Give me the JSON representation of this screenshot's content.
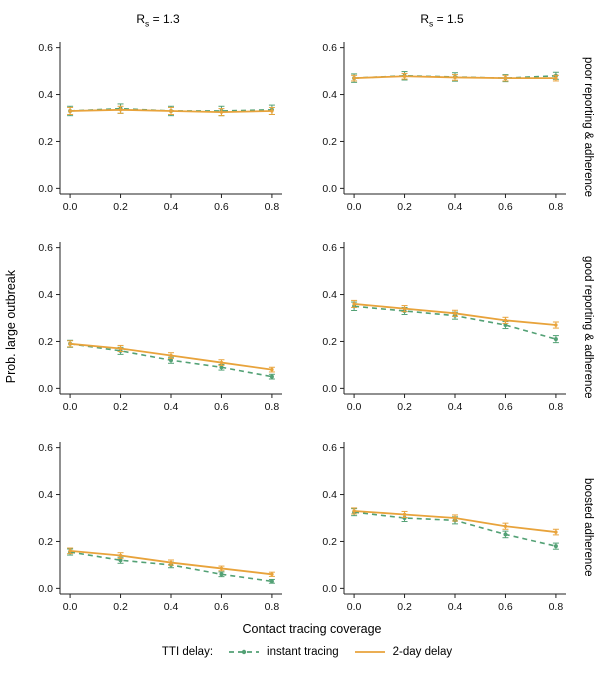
{
  "chart_data": {
    "type": "line",
    "x": [
      0.0,
      0.2,
      0.4,
      0.6,
      0.8
    ],
    "xlim": [
      0,
      0.8
    ],
    "ylim": [
      0,
      0.6
    ],
    "x_ticks": [
      "0.0",
      "0.2",
      "0.4",
      "0.6",
      "0.8"
    ],
    "y_ticks": [
      "0.0",
      "0.2",
      "0.4",
      "0.6"
    ],
    "xlabel": "Contact tracing coverage",
    "ylabel": "Prob. large outbreak",
    "grid": "off",
    "legend_position": "bottom",
    "columns": [
      {
        "base": "R",
        "sub": "s",
        "eq": " = 1.3"
      },
      {
        "base": "R",
        "sub": "s",
        "eq": " = 1.5"
      }
    ],
    "rows": [
      "poor reporting & adherence",
      "good reporting & adherence",
      "boosted adherence"
    ],
    "legend": {
      "title": "TTI delay:",
      "entries": [
        {
          "name": "instant tracing",
          "color": "#53A175",
          "dash": true
        },
        {
          "name": "2-day delay",
          "color": "#E8A33B",
          "dash": false
        }
      ]
    },
    "panels": [
      {
        "row": "poor reporting & adherence",
        "col": "Rs = 1.3",
        "series": [
          {
            "name": "instant tracing",
            "values": [
              0.33,
              0.34,
              0.33,
              0.33,
              0.335
            ],
            "errors": [
              0.02,
              0.02,
              0.02,
              0.02,
              0.02
            ]
          },
          {
            "name": "2-day delay",
            "values": [
              0.33,
              0.335,
              0.33,
              0.325,
              0.33
            ],
            "errors": [
              0.015,
              0.015,
              0.015,
              0.015,
              0.015
            ]
          }
        ]
      },
      {
        "row": "poor reporting & adherence",
        "col": "Rs = 1.5",
        "series": [
          {
            "name": "instant tracing",
            "values": [
              0.47,
              0.48,
              0.475,
              0.47,
              0.48
            ],
            "errors": [
              0.018,
              0.018,
              0.018,
              0.015,
              0.015
            ]
          },
          {
            "name": "2-day delay",
            "values": [
              0.47,
              0.478,
              0.473,
              0.47,
              0.47
            ],
            "errors": [
              0.012,
              0.012,
              0.012,
              0.012,
              0.012
            ]
          }
        ]
      },
      {
        "row": "good reporting & adherence",
        "col": "Rs = 1.3",
        "series": [
          {
            "name": "instant tracing",
            "values": [
              0.19,
              0.16,
              0.12,
              0.09,
              0.05
            ],
            "errors": [
              0.015,
              0.015,
              0.013,
              0.012,
              0.01
            ]
          },
          {
            "name": "2-day delay",
            "values": [
              0.19,
              0.17,
              0.14,
              0.11,
              0.08
            ],
            "errors": [
              0.013,
              0.013,
              0.012,
              0.012,
              0.01
            ]
          }
        ]
      },
      {
        "row": "good reporting & adherence",
        "col": "Rs = 1.5",
        "series": [
          {
            "name": "instant tracing",
            "values": [
              0.35,
              0.33,
              0.31,
              0.27,
              0.21
            ],
            "errors": [
              0.018,
              0.015,
              0.015,
              0.015,
              0.015
            ]
          },
          {
            "name": "2-day delay",
            "values": [
              0.36,
              0.34,
              0.32,
              0.29,
              0.27
            ],
            "errors": [
              0.015,
              0.013,
              0.013,
              0.013,
              0.013
            ]
          }
        ]
      },
      {
        "row": "boosted adherence",
        "col": "Rs = 1.3",
        "series": [
          {
            "name": "instant tracing",
            "values": [
              0.155,
              0.12,
              0.1,
              0.06,
              0.03
            ],
            "errors": [
              0.013,
              0.013,
              0.012,
              0.01,
              0.008
            ]
          },
          {
            "name": "2-day delay",
            "values": [
              0.16,
              0.14,
              0.11,
              0.085,
              0.06
            ],
            "errors": [
              0.012,
              0.012,
              0.011,
              0.01,
              0.009
            ]
          }
        ]
      },
      {
        "row": "boosted adherence",
        "col": "Rs = 1.5",
        "series": [
          {
            "name": "instant tracing",
            "values": [
              0.325,
              0.3,
              0.29,
              0.23,
              0.18
            ],
            "errors": [
              0.015,
              0.015,
              0.015,
              0.014,
              0.013
            ]
          },
          {
            "name": "2-day delay",
            "values": [
              0.33,
              0.315,
              0.3,
              0.265,
              0.24
            ],
            "errors": [
              0.013,
              0.013,
              0.013,
              0.013,
              0.012
            ]
          }
        ]
      }
    ]
  }
}
